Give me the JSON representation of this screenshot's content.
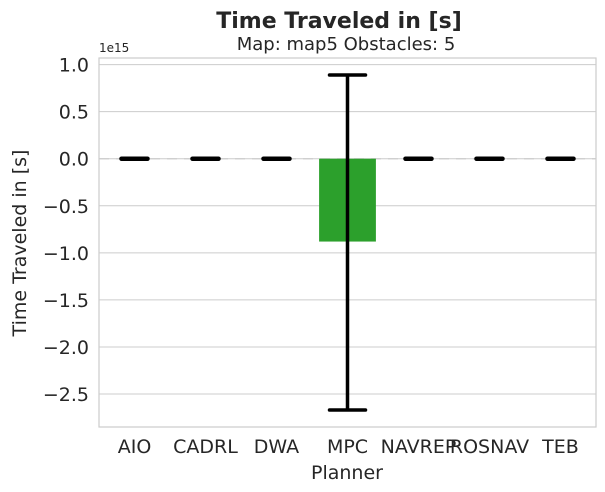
{
  "chart_data": {
    "type": "bar",
    "title": "Time Traveled in [s]",
    "subtitle": "Map: map5 Obstacles: 5",
    "xlabel": "Planner",
    "ylabel": "Time Traveled in [s]",
    "y_offset_label": "1e15",
    "categories": [
      "AIO",
      "CADRL",
      "DWA",
      "MPC",
      "NAVREP",
      "ROSNAV",
      "TEB"
    ],
    "values": [
      0,
      0,
      0,
      -0.88,
      0,
      0,
      0
    ],
    "error_low": [
      0,
      0,
      0,
      -2.67,
      0,
      0,
      0
    ],
    "error_high": [
      0,
      0,
      0,
      0.89,
      0,
      0,
      0
    ],
    "ylim": [
      -2.85,
      1.07
    ],
    "yticks": [
      1.0,
      0.5,
      0.0,
      -0.5,
      -1.0,
      -1.5,
      -2.0,
      -2.5
    ],
    "ytick_labels": [
      "1.0",
      "0.5",
      "0.0",
      "−0.5",
      "−1.0",
      "−1.5",
      "−2.0",
      "−2.5"
    ],
    "grid": true,
    "bar_color": "#2ca02c",
    "error_color": "#000000",
    "dash_color": "#cccccc"
  }
}
